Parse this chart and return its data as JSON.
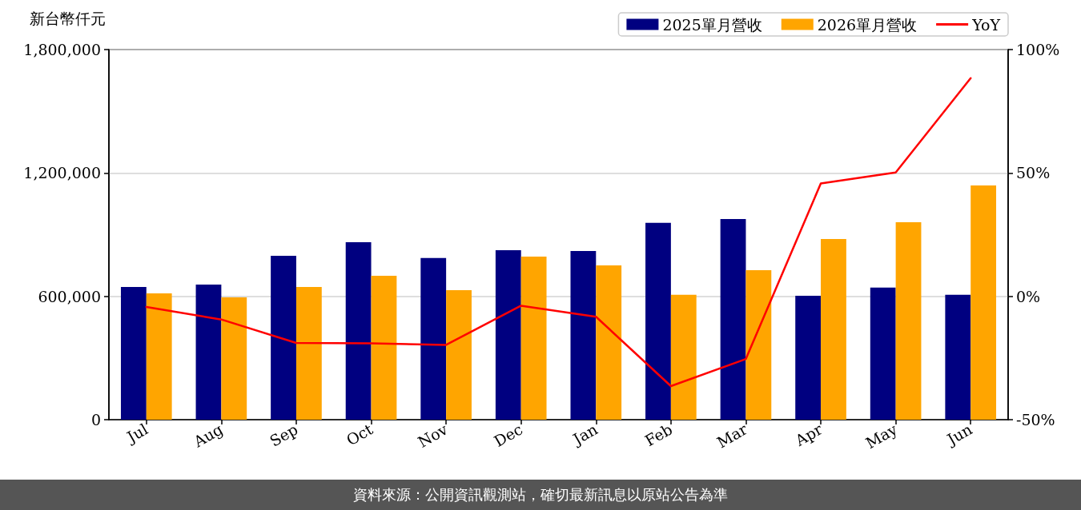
{
  "chart_data": {
    "type": "bar",
    "ylabel": "新台幣仟元",
    "categories": [
      "Jul",
      "Aug",
      "Sep",
      "Oct",
      "Nov",
      "Dec",
      "Jan",
      "Feb",
      "Mar",
      "Apr",
      "May",
      "Jun"
    ],
    "series": [
      {
        "name": "2025單月營收",
        "color": "#000080",
        "values": [
          645000,
          657000,
          797000,
          863000,
          786000,
          824000,
          820000,
          957000,
          976000,
          603000,
          642000,
          607000
        ]
      },
      {
        "name": "2026單月營收",
        "color": "#ffa500",
        "values": [
          614000,
          595000,
          645000,
          700000,
          630000,
          793000,
          750000,
          607000,
          727000,
          879000,
          960000,
          1139000
        ]
      },
      {
        "name": "YoY",
        "type": "line",
        "axis": "y2",
        "color": "#ff0000",
        "values": [
          -4.3,
          -9.4,
          -18.9,
          -19.1,
          -19.7,
          -3.8,
          -8.3,
          -36.4,
          -25.4,
          45.7,
          50.2,
          88.4
        ]
      }
    ],
    "ylim": [
      0,
      1800000
    ],
    "yticks": [
      0,
      {
        "value": 600000,
        "label": "600,000"
      },
      {
        "value": 1200000,
        "label": "1,200,000"
      },
      {
        "value": 1800000,
        "label": "1,800,000"
      }
    ],
    "y2lim": [
      -50,
      100
    ],
    "y2ticks": [
      {
        "value": -50,
        "label": "-50%"
      },
      {
        "value": 0,
        "label": "0%"
      },
      {
        "value": 50,
        "label": "50%"
      },
      {
        "value": 100,
        "label": "100%"
      }
    ],
    "grid": "y",
    "legend": "top right",
    "marker": "none",
    "line_style": "solid",
    "annotations": [
      "資料來源：公開資訊觀測站，確切最新訊息以原站公告為準"
    ]
  }
}
